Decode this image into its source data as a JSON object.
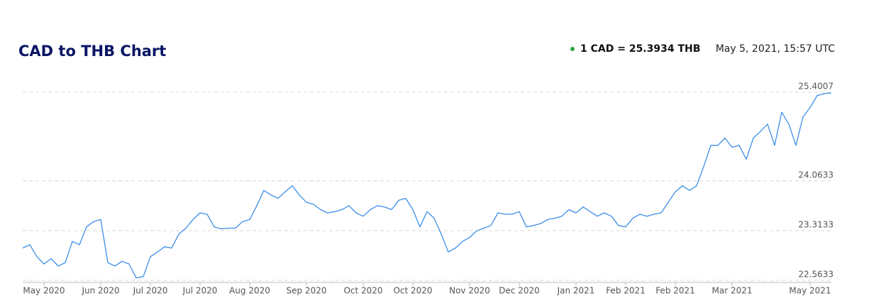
{
  "header": {
    "rate": "1 CAD = 25.3934 THB",
    "timestamp": "May 5, 2021, 15:57 UTC"
  },
  "chart_data": {
    "type": "line",
    "title": "CAD to THB Chart",
    "categories": [
      null,
      null,
      null,
      "May 2020",
      null,
      null,
      null,
      null,
      null,
      null,
      null,
      "Jun 2020",
      null,
      null,
      null,
      null,
      null,
      null,
      "Jul 2020",
      null,
      null,
      null,
      null,
      null,
      null,
      "Jul 2020",
      null,
      null,
      null,
      null,
      null,
      null,
      "Aug 2020",
      null,
      null,
      null,
      null,
      null,
      null,
      null,
      "Sep 2020",
      null,
      null,
      null,
      null,
      null,
      null,
      null,
      "Oct 2020",
      null,
      null,
      null,
      null,
      null,
      null,
      "Oct 2020",
      null,
      null,
      null,
      null,
      null,
      null,
      null,
      "Nov 2020",
      null,
      null,
      null,
      null,
      null,
      null,
      "Dec 2020",
      null,
      null,
      null,
      null,
      null,
      null,
      null,
      "Jan 2021",
      null,
      null,
      null,
      null,
      null,
      null,
      "Feb 2021",
      null,
      null,
      null,
      null,
      null,
      null,
      "Feb 2021",
      null,
      null,
      null,
      null,
      null,
      null,
      null,
      "Mar 2021",
      null,
      null,
      null,
      null,
      null,
      null,
      null,
      null,
      null,
      null,
      "May 2021",
      null,
      null,
      null
    ],
    "values": [
      23.05,
      23.1,
      22.92,
      22.81,
      22.89,
      22.78,
      22.83,
      23.15,
      23.1,
      23.37,
      23.45,
      23.48,
      22.83,
      22.78,
      22.85,
      22.81,
      22.6,
      22.62,
      22.92,
      22.99,
      23.07,
      23.05,
      23.26,
      23.35,
      23.48,
      23.58,
      23.56,
      23.37,
      23.34,
      23.35,
      23.35,
      23.45,
      23.48,
      23.69,
      23.92,
      23.85,
      23.8,
      23.9,
      23.99,
      23.85,
      23.74,
      23.71,
      23.63,
      23.58,
      23.6,
      23.63,
      23.69,
      23.58,
      23.53,
      23.63,
      23.69,
      23.67,
      23.63,
      23.77,
      23.8,
      23.63,
      23.37,
      23.6,
      23.5,
      23.26,
      22.99,
      23.05,
      23.15,
      23.21,
      23.31,
      23.35,
      23.39,
      23.58,
      23.56,
      23.56,
      23.6,
      23.37,
      23.39,
      23.42,
      23.48,
      23.5,
      23.53,
      23.63,
      23.58,
      23.67,
      23.6,
      23.53,
      23.58,
      23.53,
      23.39,
      23.37,
      23.5,
      23.56,
      23.53,
      23.56,
      23.58,
      23.74,
      23.9,
      23.99,
      23.92,
      23.99,
      24.28,
      24.6,
      24.6,
      24.71,
      24.57,
      24.6,
      24.39,
      24.71,
      24.81,
      24.92,
      24.6,
      25.1,
      24.92,
      24.6,
      25.03,
      25.17,
      25.35,
      25.38,
      25.39
    ],
    "color": "#3d8fe6",
    "ylim": [
      22.5633,
      25.4007
    ],
    "yticks": [
      22.5633,
      23.3133,
      24.0633,
      25.4007
    ],
    "grid": true
  }
}
